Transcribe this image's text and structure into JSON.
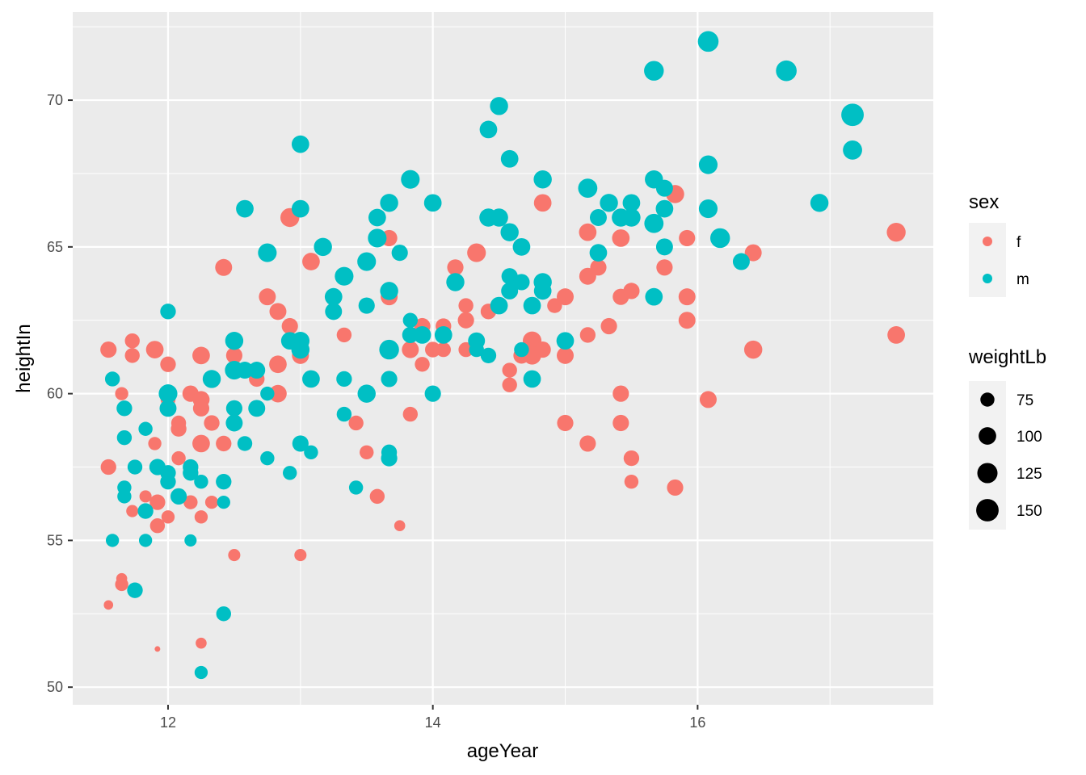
{
  "chart_data": {
    "type": "scatter",
    "xlabel": "ageYear",
    "ylabel": "heightIn",
    "xlim": [
      11.28,
      17.78
    ],
    "ylim": [
      49.4,
      73.0
    ],
    "x_ticks": [
      12,
      14,
      16
    ],
    "x_tick_labels": [
      "12",
      "14",
      "16"
    ],
    "y_ticks": [
      50,
      55,
      60,
      65,
      70
    ],
    "y_tick_labels": [
      "50",
      "55",
      "60",
      "65",
      "70"
    ],
    "grid": true,
    "panel_background": "#ebebeb",
    "legend_color": {
      "title": "sex",
      "entries": [
        {
          "label": "f",
          "color": "#F8766D"
        },
        {
          "label": "m",
          "color": "#00BFC4"
        }
      ]
    },
    "legend_size": {
      "title": "weightLb",
      "entries": [
        {
          "label": "75",
          "value": 75
        },
        {
          "label": "100",
          "value": 100
        },
        {
          "label": "125",
          "value": 125
        },
        {
          "label": "150",
          "value": 150
        }
      ]
    },
    "size_scale": {
      "range": [
        50,
        172
      ]
    },
    "series": [
      {
        "name": "f",
        "color": "#F8766D",
        "points": [
          [
            11.55,
            61.5,
            90
          ],
          [
            11.55,
            57.5,
            85
          ],
          [
            11.55,
            52.8,
            55
          ],
          [
            11.65,
            60.0,
            70
          ],
          [
            11.65,
            53.7,
            60
          ],
          [
            11.65,
            53.5,
            70
          ],
          [
            11.73,
            61.8,
            80
          ],
          [
            11.73,
            61.3,
            80
          ],
          [
            11.73,
            56.0,
            65
          ],
          [
            11.83,
            56.5,
            65
          ],
          [
            11.83,
            56.0,
            70
          ],
          [
            11.9,
            58.3,
            70
          ],
          [
            11.9,
            61.5,
            100
          ],
          [
            11.92,
            51.3,
            50
          ],
          [
            11.92,
            55.5,
            80
          ],
          [
            11.92,
            56.3,
            85
          ],
          [
            12.0,
            61.0,
            85
          ],
          [
            12.0,
            59.8,
            80
          ],
          [
            12.0,
            55.8,
            70
          ],
          [
            12.08,
            59.0,
            80
          ],
          [
            12.08,
            58.8,
            85
          ],
          [
            12.08,
            57.8,
            75
          ],
          [
            12.17,
            60.0,
            90
          ],
          [
            12.17,
            56.3,
            75
          ],
          [
            12.25,
            61.3,
            100
          ],
          [
            12.25,
            59.8,
            95
          ],
          [
            12.25,
            59.5,
            90
          ],
          [
            12.25,
            58.3,
            100
          ],
          [
            12.25,
            55.8,
            70
          ],
          [
            12.25,
            51.5,
            60
          ],
          [
            12.33,
            59.0,
            85
          ],
          [
            12.33,
            56.3,
            70
          ],
          [
            12.42,
            64.3,
            95
          ],
          [
            12.42,
            58.3,
            85
          ],
          [
            12.5,
            61.3,
            90
          ],
          [
            12.5,
            54.5,
            65
          ],
          [
            12.67,
            60.5,
            85
          ],
          [
            12.75,
            63.3,
            95
          ],
          [
            12.83,
            62.8,
            95
          ],
          [
            12.83,
            61.0,
            100
          ],
          [
            12.83,
            60.0,
            100
          ],
          [
            12.92,
            66.0,
            112
          ],
          [
            12.92,
            62.3,
            90
          ],
          [
            13.0,
            61.3,
            95
          ],
          [
            13.0,
            54.5,
            65
          ],
          [
            13.08,
            64.5,
            100
          ],
          [
            13.33,
            62.0,
            80
          ],
          [
            13.42,
            59.0,
            80
          ],
          [
            13.5,
            58.0,
            75
          ],
          [
            13.58,
            56.5,
            80
          ],
          [
            13.67,
            65.3,
            90
          ],
          [
            13.67,
            63.3,
            95
          ],
          [
            13.75,
            55.5,
            60
          ],
          [
            13.83,
            59.3,
            80
          ],
          [
            13.83,
            61.5,
            95
          ],
          [
            13.92,
            62.3,
            90
          ],
          [
            13.92,
            61.0,
            80
          ],
          [
            14.0,
            61.5,
            85
          ],
          [
            14.08,
            62.3,
            85
          ],
          [
            14.08,
            61.5,
            80
          ],
          [
            14.17,
            64.3,
            90
          ],
          [
            14.25,
            63.0,
            80
          ],
          [
            14.25,
            62.5,
            90
          ],
          [
            14.25,
            61.5,
            80
          ],
          [
            14.33,
            64.8,
            110
          ],
          [
            14.42,
            62.8,
            85
          ],
          [
            14.58,
            60.8,
            80
          ],
          [
            14.58,
            60.3,
            80
          ],
          [
            14.67,
            61.3,
            90
          ],
          [
            14.75,
            61.8,
            110
          ],
          [
            14.75,
            61.3,
            105
          ],
          [
            14.83,
            66.5,
            100
          ],
          [
            14.83,
            61.5,
            90
          ],
          [
            14.92,
            63.0,
            80
          ],
          [
            15.0,
            63.3,
            95
          ],
          [
            15.0,
            61.3,
            95
          ],
          [
            15.0,
            59.0,
            90
          ],
          [
            15.17,
            65.5,
            100
          ],
          [
            15.17,
            64.0,
            95
          ],
          [
            15.17,
            62.0,
            85
          ],
          [
            15.17,
            58.3,
            90
          ],
          [
            15.25,
            64.3,
            90
          ],
          [
            15.33,
            62.3,
            90
          ],
          [
            15.42,
            65.3,
            100
          ],
          [
            15.42,
            63.3,
            90
          ],
          [
            15.42,
            60.0,
            90
          ],
          [
            15.42,
            59.0,
            90
          ],
          [
            15.5,
            63.5,
            90
          ],
          [
            15.5,
            57.8,
            85
          ],
          [
            15.5,
            57.0,
            75
          ],
          [
            15.75,
            64.3,
            90
          ],
          [
            15.83,
            66.8,
            105
          ],
          [
            15.83,
            56.8,
            90
          ],
          [
            15.92,
            65.3,
            90
          ],
          [
            15.92,
            63.3,
            95
          ],
          [
            15.92,
            62.5,
            95
          ],
          [
            16.08,
            59.8,
            95
          ],
          [
            16.42,
            64.8,
            95
          ],
          [
            16.42,
            61.5,
            105
          ],
          [
            17.5,
            65.5,
            112
          ],
          [
            17.5,
            62.0,
            100
          ]
        ]
      },
      {
        "name": "m",
        "color": "#00BFC4",
        "points": [
          [
            11.58,
            60.5,
            80
          ],
          [
            11.58,
            55.0,
            70
          ],
          [
            11.67,
            59.5,
            85
          ],
          [
            11.67,
            58.5,
            80
          ],
          [
            11.67,
            56.8,
            75
          ],
          [
            11.67,
            56.5,
            75
          ],
          [
            11.75,
            57.5,
            80
          ],
          [
            11.75,
            53.3,
            85
          ],
          [
            11.83,
            58.8,
            75
          ],
          [
            11.83,
            56.0,
            85
          ],
          [
            11.83,
            55.0,
            70
          ],
          [
            11.92,
            57.5,
            90
          ],
          [
            12.0,
            62.8,
            85
          ],
          [
            12.0,
            60.0,
            110
          ],
          [
            12.0,
            59.5,
            95
          ],
          [
            12.0,
            57.3,
            85
          ],
          [
            12.0,
            57.0,
            85
          ],
          [
            12.08,
            56.5,
            90
          ],
          [
            12.17,
            57.5,
            85
          ],
          [
            12.17,
            57.3,
            85
          ],
          [
            12.17,
            55.0,
            65
          ],
          [
            12.25,
            57.0,
            75
          ],
          [
            12.25,
            50.5,
            70
          ],
          [
            12.33,
            60.5,
            105
          ],
          [
            12.42,
            57.0,
            85
          ],
          [
            12.42,
            56.3,
            70
          ],
          [
            12.42,
            52.5,
            80
          ],
          [
            12.5,
            61.8,
            105
          ],
          [
            12.5,
            60.8,
            110
          ],
          [
            12.5,
            59.5,
            90
          ],
          [
            12.5,
            59.0,
            95
          ],
          [
            12.58,
            66.3,
            100
          ],
          [
            12.58,
            60.8,
            95
          ],
          [
            12.58,
            58.3,
            80
          ],
          [
            12.67,
            60.8,
            95
          ],
          [
            12.67,
            59.5,
            95
          ],
          [
            12.75,
            64.8,
            110
          ],
          [
            12.75,
            60.0,
            75
          ],
          [
            12.75,
            57.8,
            75
          ],
          [
            12.92,
            61.8,
            100
          ],
          [
            12.92,
            57.3,
            75
          ],
          [
            13.0,
            68.5,
            100
          ],
          [
            13.0,
            66.3,
            100
          ],
          [
            13.0,
            61.8,
            105
          ],
          [
            13.0,
            61.5,
            105
          ],
          [
            13.0,
            58.3,
            90
          ],
          [
            13.08,
            60.5,
            100
          ],
          [
            13.08,
            58.0,
            75
          ],
          [
            13.17,
            65.0,
            105
          ],
          [
            13.25,
            63.3,
            100
          ],
          [
            13.25,
            62.8,
            95
          ],
          [
            13.33,
            64.0,
            110
          ],
          [
            13.33,
            60.5,
            85
          ],
          [
            13.33,
            59.3,
            80
          ],
          [
            13.42,
            56.8,
            75
          ],
          [
            13.5,
            64.5,
            110
          ],
          [
            13.5,
            63.0,
            90
          ],
          [
            13.5,
            60.0,
            105
          ],
          [
            13.58,
            66.0,
            100
          ],
          [
            13.58,
            65.3,
            110
          ],
          [
            13.67,
            66.5,
            105
          ],
          [
            13.67,
            63.5,
            105
          ],
          [
            13.67,
            61.5,
            120
          ],
          [
            13.67,
            60.5,
            90
          ],
          [
            13.67,
            58.0,
            85
          ],
          [
            13.67,
            57.8,
            90
          ],
          [
            13.75,
            64.8,
            90
          ],
          [
            13.83,
            67.3,
            110
          ],
          [
            13.83,
            62.5,
            80
          ],
          [
            13.83,
            62.0,
            90
          ],
          [
            13.92,
            62.0,
            100
          ],
          [
            14.0,
            66.5,
            100
          ],
          [
            14.0,
            60.0,
            90
          ],
          [
            14.08,
            62.0,
            100
          ],
          [
            14.17,
            63.8,
            105
          ],
          [
            14.33,
            61.8,
            95
          ],
          [
            14.33,
            61.5,
            80
          ],
          [
            14.42,
            69.0,
            100
          ],
          [
            14.42,
            66.0,
            105
          ],
          [
            14.42,
            61.3,
            85
          ],
          [
            14.5,
            69.8,
            105
          ],
          [
            14.5,
            66.0,
            105
          ],
          [
            14.5,
            63.0,
            100
          ],
          [
            14.58,
            68.0,
            100
          ],
          [
            14.58,
            65.5,
            105
          ],
          [
            14.58,
            64.0,
            90
          ],
          [
            14.58,
            63.5,
            95
          ],
          [
            14.67,
            65.0,
            100
          ],
          [
            14.67,
            63.8,
            90
          ],
          [
            14.67,
            61.5,
            80
          ],
          [
            14.75,
            63.0,
            100
          ],
          [
            14.75,
            60.5,
            100
          ],
          [
            14.83,
            67.3,
            105
          ],
          [
            14.83,
            63.8,
            105
          ],
          [
            14.83,
            63.5,
            100
          ],
          [
            15.0,
            61.8,
            100
          ],
          [
            15.17,
            67.0,
            115
          ],
          [
            15.25,
            66.0,
            95
          ],
          [
            15.25,
            64.8,
            100
          ],
          [
            15.33,
            66.5,
            105
          ],
          [
            15.42,
            66.0,
            105
          ],
          [
            15.5,
            66.5,
            100
          ],
          [
            15.5,
            66.0,
            105
          ],
          [
            15.67,
            71.0,
            120
          ],
          [
            15.67,
            67.3,
            105
          ],
          [
            15.67,
            65.8,
            115
          ],
          [
            15.67,
            63.3,
            100
          ],
          [
            15.75,
            67.0,
            95
          ],
          [
            15.75,
            66.3,
            100
          ],
          [
            15.75,
            65.0,
            95
          ],
          [
            16.08,
            72.0,
            130
          ],
          [
            16.08,
            67.8,
            110
          ],
          [
            16.08,
            66.3,
            110
          ],
          [
            16.17,
            65.3,
            120
          ],
          [
            16.33,
            64.5,
            95
          ],
          [
            16.67,
            71.0,
            130
          ],
          [
            16.92,
            66.5,
            105
          ],
          [
            17.17,
            69.5,
            150
          ],
          [
            17.17,
            68.3,
            115
          ]
        ]
      }
    ]
  }
}
